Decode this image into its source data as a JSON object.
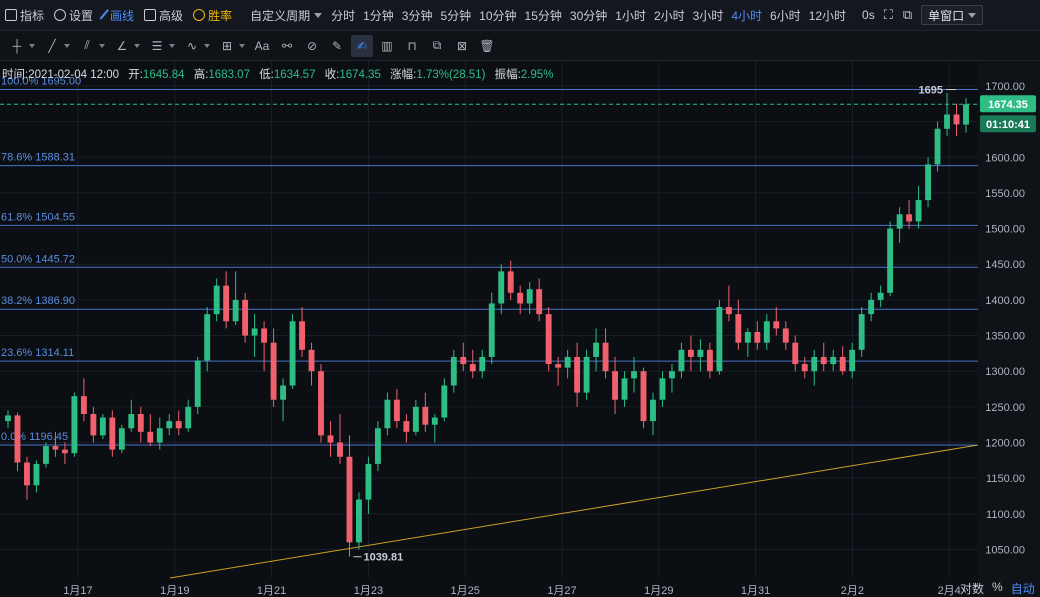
{
  "topbar": {
    "indicator": "指标",
    "settings": "设置",
    "draw": "画线",
    "advanced": "高级",
    "winrate": "胜率",
    "custom_period": "自定义周期",
    "periods": [
      "分时",
      "1分钟",
      "3分钟",
      "5分钟",
      "10分钟",
      "15分钟",
      "30分钟",
      "1小时",
      "2小时",
      "3小时",
      "4小时",
      "6小时",
      "12小时"
    ],
    "active_period": "4小时",
    "extra": "0s",
    "window_mode": "单窗口"
  },
  "infoline": {
    "time_label": "时间:",
    "time": "2021-02-04 12:00",
    "open_label": "开:",
    "open": "1645.84",
    "high_label": "高:",
    "high": "1683.07",
    "low_label": "低:",
    "low": "1634.57",
    "close_label": "收:",
    "close": "1674.35",
    "change_label": "涨幅:",
    "change": "1.73%(28.51)",
    "amp_label": "振幅:",
    "amp": "2.95%"
  },
  "bottom_controls": {
    "log": "对数",
    "percent": "%",
    "auto": "自动"
  },
  "chart_data": {
    "type": "candlestick",
    "y_axis_ticks": [
      1050,
      1100,
      1150,
      1200,
      1250,
      1300,
      1350,
      1400,
      1450,
      1500,
      1550,
      1600,
      1650,
      1700
    ],
    "y_axis_labels": [
      "1050.00",
      "1100.00",
      "1150.00",
      "1200.00",
      "1250.00",
      "1300.00",
      "1350.00",
      "1400.00",
      "1450.00",
      "1500.00",
      "1550.00",
      "1600.00",
      "1650.00",
      "1700.00"
    ],
    "ylim": [
      1010,
      1735
    ],
    "x_axis_labels": [
      "1月17",
      "1月19",
      "1月21",
      "1月23",
      "1月25",
      "1月27",
      "1月29",
      "1月31",
      "2月2",
      "2月4"
    ],
    "last_price": "1674.35",
    "countdown": "01:10:41",
    "fibonacci": [
      {
        "label": "100.0% 1695.00",
        "value": 1695.0
      },
      {
        "label": "78.6% 1588.31",
        "value": 1588.31
      },
      {
        "label": "61.8% 1504.55",
        "value": 1504.55
      },
      {
        "label": "50.0% 1445.72",
        "value": 1445.72
      },
      {
        "label": "38.2% 1386.90",
        "value": 1386.9
      },
      {
        "label": "23.6% 1314.11",
        "value": 1314.11
      },
      {
        "label": "0.0% 1196.45",
        "value": 1196.45
      }
    ],
    "annotations": [
      {
        "label": "1695",
        "value": 1695
      },
      {
        "label": "1039.81",
        "value": 1039.81
      }
    ],
    "colors": {
      "up": "#2ebd85",
      "down": "#f0616d",
      "fib": "#4a74c9",
      "trend": "#c9a227",
      "last": "#2ebd85"
    },
    "candles": [
      [
        1230,
        1245,
        1220,
        1238
      ],
      [
        1238,
        1242,
        1160,
        1172
      ],
      [
        1172,
        1180,
        1120,
        1140
      ],
      [
        1140,
        1175,
        1130,
        1170
      ],
      [
        1170,
        1200,
        1165,
        1195
      ],
      [
        1195,
        1215,
        1180,
        1190
      ],
      [
        1190,
        1200,
        1170,
        1185
      ],
      [
        1185,
        1270,
        1180,
        1265
      ],
      [
        1265,
        1290,
        1230,
        1240
      ],
      [
        1240,
        1250,
        1200,
        1210
      ],
      [
        1210,
        1240,
        1205,
        1235
      ],
      [
        1235,
        1245,
        1180,
        1190
      ],
      [
        1190,
        1225,
        1185,
        1220
      ],
      [
        1220,
        1260,
        1215,
        1240
      ],
      [
        1240,
        1250,
        1200,
        1215
      ],
      [
        1215,
        1240,
        1195,
        1200
      ],
      [
        1200,
        1235,
        1190,
        1220
      ],
      [
        1220,
        1240,
        1210,
        1230
      ],
      [
        1230,
        1245,
        1210,
        1220
      ],
      [
        1220,
        1260,
        1215,
        1250
      ],
      [
        1250,
        1320,
        1240,
        1315
      ],
      [
        1315,
        1390,
        1300,
        1380
      ],
      [
        1380,
        1430,
        1370,
        1420
      ],
      [
        1420,
        1440,
        1360,
        1370
      ],
      [
        1370,
        1440,
        1365,
        1400
      ],
      [
        1400,
        1410,
        1340,
        1350
      ],
      [
        1350,
        1380,
        1320,
        1360
      ],
      [
        1360,
        1370,
        1300,
        1340
      ],
      [
        1340,
        1360,
        1250,
        1260
      ],
      [
        1260,
        1290,
        1230,
        1280
      ],
      [
        1280,
        1380,
        1275,
        1370
      ],
      [
        1370,
        1390,
        1320,
        1330
      ],
      [
        1330,
        1340,
        1280,
        1300
      ],
      [
        1300,
        1310,
        1200,
        1210
      ],
      [
        1210,
        1230,
        1180,
        1200
      ],
      [
        1200,
        1240,
        1170,
        1180
      ],
      [
        1180,
        1210,
        1040,
        1060
      ],
      [
        1060,
        1130,
        1050,
        1120
      ],
      [
        1120,
        1180,
        1100,
        1170
      ],
      [
        1170,
        1230,
        1160,
        1220
      ],
      [
        1220,
        1270,
        1210,
        1260
      ],
      [
        1260,
        1275,
        1220,
        1230
      ],
      [
        1230,
        1240,
        1200,
        1215
      ],
      [
        1215,
        1260,
        1210,
        1250
      ],
      [
        1250,
        1270,
        1215,
        1225
      ],
      [
        1225,
        1240,
        1200,
        1235
      ],
      [
        1235,
        1290,
        1230,
        1280
      ],
      [
        1280,
        1330,
        1270,
        1320
      ],
      [
        1320,
        1340,
        1300,
        1310
      ],
      [
        1310,
        1330,
        1290,
        1300
      ],
      [
        1300,
        1330,
        1290,
        1320
      ],
      [
        1320,
        1410,
        1310,
        1395
      ],
      [
        1395,
        1450,
        1380,
        1440
      ],
      [
        1440,
        1455,
        1400,
        1410
      ],
      [
        1410,
        1420,
        1380,
        1395
      ],
      [
        1395,
        1425,
        1380,
        1415
      ],
      [
        1415,
        1430,
        1370,
        1380
      ],
      [
        1380,
        1390,
        1300,
        1310
      ],
      [
        1310,
        1320,
        1280,
        1305
      ],
      [
        1305,
        1330,
        1290,
        1320
      ],
      [
        1320,
        1340,
        1250,
        1270
      ],
      [
        1270,
        1330,
        1260,
        1320
      ],
      [
        1320,
        1360,
        1300,
        1340
      ],
      [
        1340,
        1360,
        1290,
        1300
      ],
      [
        1300,
        1320,
        1240,
        1260
      ],
      [
        1260,
        1300,
        1250,
        1290
      ],
      [
        1290,
        1320,
        1270,
        1300
      ],
      [
        1300,
        1305,
        1220,
        1230
      ],
      [
        1230,
        1270,
        1210,
        1260
      ],
      [
        1260,
        1300,
        1250,
        1290
      ],
      [
        1290,
        1310,
        1270,
        1300
      ],
      [
        1300,
        1340,
        1290,
        1330
      ],
      [
        1330,
        1350,
        1300,
        1320
      ],
      [
        1320,
        1345,
        1300,
        1330
      ],
      [
        1330,
        1340,
        1290,
        1300
      ],
      [
        1300,
        1400,
        1295,
        1390
      ],
      [
        1390,
        1420,
        1370,
        1380
      ],
      [
        1380,
        1400,
        1330,
        1340
      ],
      [
        1340,
        1360,
        1320,
        1355
      ],
      [
        1355,
        1370,
        1330,
        1340
      ],
      [
        1340,
        1380,
        1330,
        1370
      ],
      [
        1370,
        1390,
        1350,
        1360
      ],
      [
        1360,
        1370,
        1330,
        1340
      ],
      [
        1340,
        1350,
        1300,
        1310
      ],
      [
        1310,
        1320,
        1290,
        1300
      ],
      [
        1300,
        1330,
        1280,
        1320
      ],
      [
        1320,
        1340,
        1300,
        1310
      ],
      [
        1310,
        1330,
        1300,
        1320
      ],
      [
        1320,
        1335,
        1295,
        1300
      ],
      [
        1300,
        1340,
        1290,
        1330
      ],
      [
        1330,
        1390,
        1320,
        1380
      ],
      [
        1380,
        1410,
        1370,
        1400
      ],
      [
        1400,
        1420,
        1390,
        1410
      ],
      [
        1410,
        1510,
        1405,
        1500
      ],
      [
        1500,
        1530,
        1480,
        1520
      ],
      [
        1520,
        1540,
        1500,
        1510
      ],
      [
        1510,
        1560,
        1500,
        1540
      ],
      [
        1540,
        1600,
        1530,
        1590
      ],
      [
        1590,
        1650,
        1580,
        1640
      ],
      [
        1640,
        1690,
        1630,
        1660
      ],
      [
        1660,
        1675,
        1630,
        1646
      ],
      [
        1645.84,
        1683.07,
        1634.57,
        1674.35
      ]
    ]
  }
}
